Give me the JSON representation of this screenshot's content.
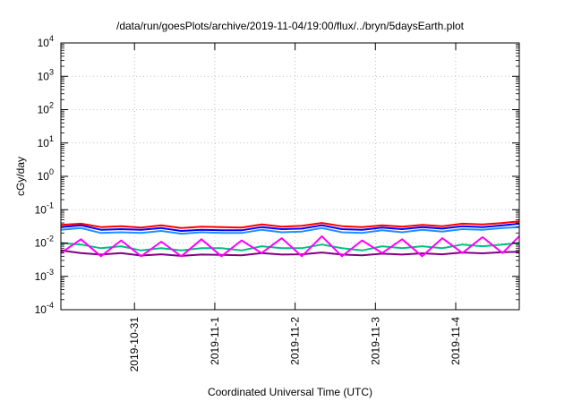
{
  "chart_data": {
    "type": "line",
    "title": "/data/run/goesPlots/archive/2019-11-04/19:00/flux/../bryn/5daysEarth.plot",
    "xlabel": "Coordinated Universal Time (UTC)",
    "ylabel": "cGy/day",
    "yscale": "log",
    "ylim": [
      0.0001,
      10000
    ],
    "xlim": [
      "2019-10-30T02:00",
      "2019-11-04T19:00"
    ],
    "grid": true,
    "x_ticks": [
      "2019-10-31",
      "2019-11-1",
      "2019-11-2",
      "2019-11-3",
      "2019-11-4"
    ],
    "y_ticks": [
      {
        "base": "10",
        "exp": "-4"
      },
      {
        "base": "10",
        "exp": "-3"
      },
      {
        "base": "10",
        "exp": "-2"
      },
      {
        "base": "10",
        "exp": "-1"
      },
      {
        "base": "10",
        "exp": "0"
      },
      {
        "base": "10",
        "exp": "1"
      },
      {
        "base": "10",
        "exp": "2"
      },
      {
        "base": "10",
        "exp": "3"
      },
      {
        "base": "10",
        "exp": "4"
      }
    ],
    "x": [
      "2019-10-30T02:00",
      "2019-10-30T08:00",
      "2019-10-30T14:00",
      "2019-10-30T20:00",
      "2019-10-31T02:00",
      "2019-10-31T08:00",
      "2019-10-31T14:00",
      "2019-10-31T20:00",
      "2019-11-01T02:00",
      "2019-11-01T08:00",
      "2019-11-01T14:00",
      "2019-11-01T20:00",
      "2019-11-02T02:00",
      "2019-11-02T08:00",
      "2019-11-02T14:00",
      "2019-11-02T20:00",
      "2019-11-03T02:00",
      "2019-11-03T08:00",
      "2019-11-03T14:00",
      "2019-11-03T20:00",
      "2019-11-04T02:00",
      "2019-11-04T08:00",
      "2019-11-04T14:00",
      "2019-11-04T19:00"
    ],
    "series": [
      {
        "color": "#ff0000",
        "values": [
          0.035,
          0.038,
          0.03,
          0.032,
          0.029,
          0.034,
          0.028,
          0.031,
          0.03,
          0.029,
          0.036,
          0.031,
          0.033,
          0.04,
          0.032,
          0.03,
          0.034,
          0.031,
          0.035,
          0.032,
          0.038,
          0.036,
          0.04,
          0.045
        ]
      },
      {
        "color": "#0000ff",
        "values": [
          0.03,
          0.034,
          0.025,
          0.026,
          0.025,
          0.028,
          0.023,
          0.025,
          0.024,
          0.024,
          0.03,
          0.026,
          0.027,
          0.034,
          0.026,
          0.025,
          0.029,
          0.026,
          0.03,
          0.027,
          0.032,
          0.03,
          0.034,
          0.038
        ]
      },
      {
        "color": "#1e90ff",
        "values": [
          0.025,
          0.028,
          0.02,
          0.021,
          0.02,
          0.023,
          0.019,
          0.021,
          0.02,
          0.02,
          0.025,
          0.021,
          0.022,
          0.028,
          0.021,
          0.02,
          0.024,
          0.021,
          0.025,
          0.022,
          0.026,
          0.025,
          0.028,
          0.03
        ]
      },
      {
        "color": "#00c080",
        "values": [
          0.01,
          0.009,
          0.007,
          0.008,
          0.006,
          0.007,
          0.006,
          0.007,
          0.007,
          0.006,
          0.008,
          0.007,
          0.007,
          0.009,
          0.007,
          0.006,
          0.008,
          0.007,
          0.008,
          0.007,
          0.009,
          0.008,
          0.009,
          0.01
        ]
      },
      {
        "color": "#800080",
        "values": [
          0.006,
          0.005,
          0.0045,
          0.005,
          0.0042,
          0.0046,
          0.0041,
          0.0045,
          0.0044,
          0.0043,
          0.005,
          0.0045,
          0.0046,
          0.0052,
          0.0045,
          0.0043,
          0.0048,
          0.0045,
          0.0049,
          0.0046,
          0.0052,
          0.0049,
          0.0053,
          0.0055
        ]
      },
      {
        "color": "#ff00ff",
        "values": [
          0.005,
          0.013,
          0.004,
          0.012,
          0.004,
          0.011,
          0.004,
          0.013,
          0.004,
          0.012,
          0.005,
          0.014,
          0.004,
          0.016,
          0.004,
          0.012,
          0.005,
          0.013,
          0.004,
          0.014,
          0.005,
          0.015,
          0.005,
          0.016
        ]
      }
    ]
  }
}
